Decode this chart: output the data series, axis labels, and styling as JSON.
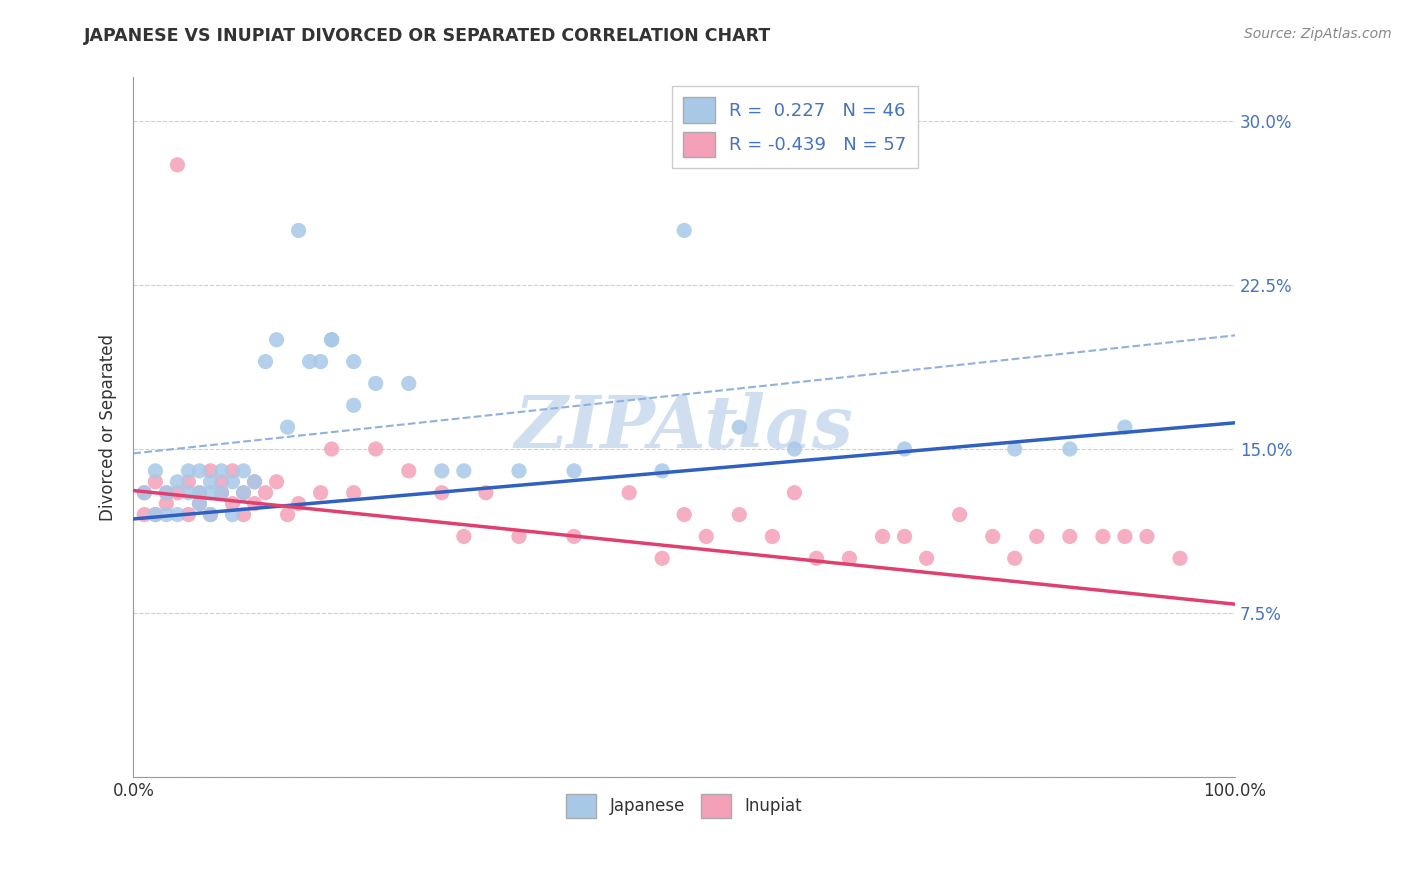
{
  "title": "JAPANESE VS INUPIAT DIVORCED OR SEPARATED CORRELATION CHART",
  "source": "Source: ZipAtlas.com",
  "ylabel": "Divorced or Separated",
  "background_color": "#ffffff",
  "grid_color": "#d0d0d0",
  "japanese_color": "#a8c8e8",
  "inupiat_color": "#f4a0b8",
  "japanese_line_color": "#3060c0",
  "inupiat_line_color": "#e04070",
  "dashed_line_color": "#90b0e0",
  "text_color": "#333333",
  "source_color": "#888888",
  "right_tick_color": "#4472c4",
  "japanese_R": 0.227,
  "japanese_N": 46,
  "inupiat_R": -0.439,
  "inupiat_N": 57,
  "jap_line_x0": 0,
  "jap_line_y0": 0.118,
  "jap_line_x1": 100,
  "jap_line_y1": 0.162,
  "inu_line_x0": 0,
  "inu_line_y0": 0.131,
  "inu_line_x1": 100,
  "inu_line_y1": 0.079,
  "dash_line_x0": 0,
  "dash_line_y0": 0.148,
  "dash_line_x1": 100,
  "dash_line_y1": 0.202,
  "jap_x": [
    1,
    2,
    2,
    3,
    3,
    4,
    4,
    5,
    5,
    6,
    6,
    6,
    7,
    7,
    7,
    8,
    8,
    9,
    9,
    10,
    10,
    11,
    12,
    13,
    15,
    17,
    18,
    20,
    25,
    28,
    30,
    35,
    40,
    48,
    50,
    55,
    60,
    70,
    80,
    85,
    90,
    20,
    22,
    16,
    18,
    14
  ],
  "jap_y": [
    0.13,
    0.12,
    0.14,
    0.13,
    0.12,
    0.135,
    0.12,
    0.13,
    0.14,
    0.125,
    0.13,
    0.14,
    0.12,
    0.135,
    0.13,
    0.14,
    0.13,
    0.135,
    0.12,
    0.13,
    0.14,
    0.135,
    0.19,
    0.2,
    0.25,
    0.19,
    0.2,
    0.19,
    0.18,
    0.14,
    0.14,
    0.14,
    0.14,
    0.14,
    0.25,
    0.16,
    0.15,
    0.15,
    0.15,
    0.15,
    0.16,
    0.17,
    0.18,
    0.19,
    0.2,
    0.16
  ],
  "inu_x": [
    1,
    1,
    2,
    2,
    3,
    3,
    4,
    4,
    5,
    5,
    6,
    6,
    7,
    7,
    8,
    8,
    9,
    9,
    10,
    10,
    11,
    11,
    12,
    13,
    14,
    15,
    17,
    18,
    20,
    22,
    25,
    28,
    30,
    32,
    35,
    40,
    45,
    48,
    50,
    52,
    55,
    58,
    60,
    62,
    65,
    68,
    70,
    72,
    75,
    78,
    80,
    82,
    85,
    88,
    90,
    92,
    95
  ],
  "inu_y": [
    0.13,
    0.12,
    0.135,
    0.12,
    0.125,
    0.13,
    0.28,
    0.13,
    0.135,
    0.12,
    0.125,
    0.13,
    0.14,
    0.12,
    0.135,
    0.13,
    0.125,
    0.14,
    0.13,
    0.12,
    0.135,
    0.125,
    0.13,
    0.135,
    0.12,
    0.125,
    0.13,
    0.15,
    0.13,
    0.15,
    0.14,
    0.13,
    0.11,
    0.13,
    0.11,
    0.11,
    0.13,
    0.1,
    0.12,
    0.11,
    0.12,
    0.11,
    0.13,
    0.1,
    0.1,
    0.11,
    0.11,
    0.1,
    0.12,
    0.11,
    0.1,
    0.11,
    0.11,
    0.11,
    0.11,
    0.11,
    0.1
  ],
  "xlim": [
    0,
    100
  ],
  "ylim": [
    0.0,
    0.32
  ],
  "yticks": [
    0.0,
    0.075,
    0.15,
    0.225,
    0.3
  ],
  "ytick_labels": [
    "",
    "7.5%",
    "15.0%",
    "22.5%",
    "30.0%"
  ],
  "watermark_text": "ZIPAtlas",
  "watermark_color": "#d0dff0",
  "legend_label1": "R =  0.227   N = 46",
  "legend_label2": "R = -0.439   N = 57",
  "bottom_legend1": "Japanese",
  "bottom_legend2": "Inupiat"
}
